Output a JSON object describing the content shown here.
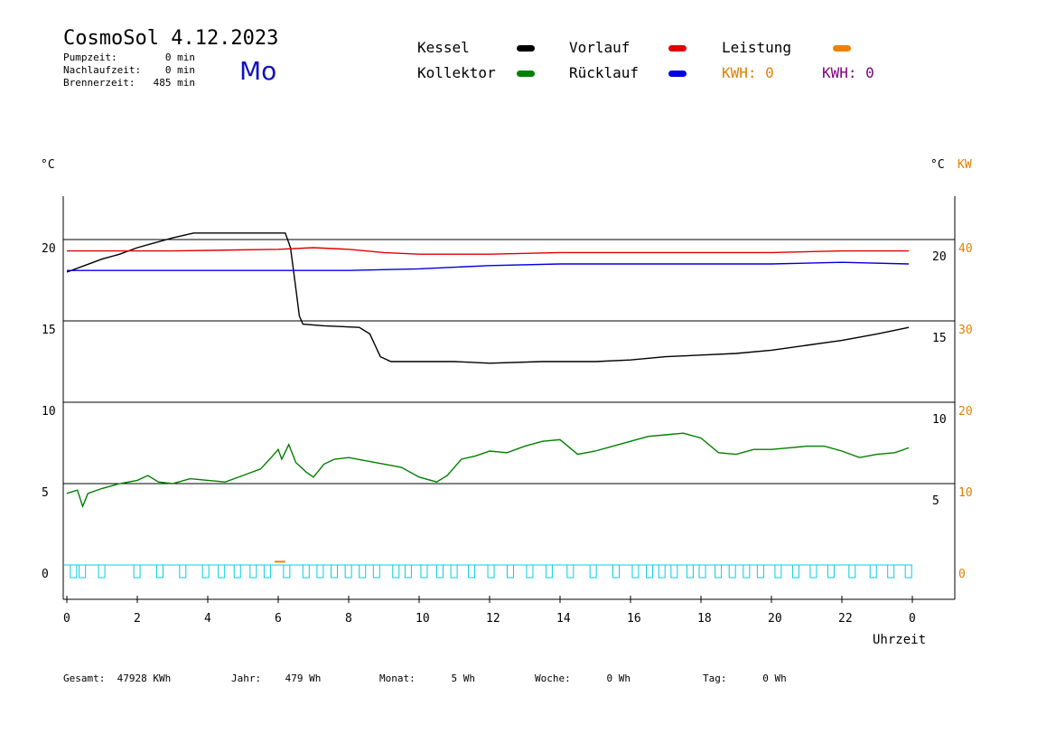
{
  "header": {
    "title": "CosmoSol 4.12.2023",
    "day": "Mo",
    "stats": [
      {
        "label": "Pumpzeit:",
        "value": "0 min"
      },
      {
        "label": "Nachlaufzeit:",
        "value": "0 min"
      },
      {
        "label": "Brennerzeit:",
        "value": "485 min"
      }
    ]
  },
  "legend": {
    "kessel": {
      "label": "Kessel",
      "color": "#000000"
    },
    "vorlauf": {
      "label": "Vorlauf",
      "color": "#e00000"
    },
    "leistung": {
      "label": "Leistung",
      "color": "#f08000"
    },
    "kollektor": {
      "label": "Kollektor",
      "color": "#008000"
    },
    "ruecklauf": {
      "label": "Rücklauf",
      "color": "#0000e0"
    },
    "kwh1": "KWH: 0",
    "kwh2": "KWH: 0",
    "kwh1_color": "#e08000",
    "kwh2_color": "#800080"
  },
  "axes": {
    "left_unit": "°C",
    "right_unit": "°C",
    "right_unit2": "KW",
    "xlabel": "Uhrzeit"
  },
  "footer": {
    "gesamt": "Gesamt:  47928 KWh",
    "jahr": "Jahr:    479 Wh",
    "monat": "Monat:      5 Wh",
    "woche": "Woche:      0 Wh",
    "tag": "Tag:      0 Wh"
  },
  "chart_data": {
    "type": "line",
    "xlabel": "Uhrzeit",
    "x_ticks": [
      "0",
      "2",
      "4",
      "6",
      "8",
      "10",
      "12",
      "14",
      "16",
      "18",
      "20",
      "22",
      "0"
    ],
    "xlim": [
      0,
      24
    ],
    "y_left": {
      "ticks": [
        0,
        5,
        10,
        15,
        20
      ],
      "range": [
        -1.7,
        22.8
      ]
    },
    "y_right_inner": {
      "ticks": [
        5,
        10,
        15,
        20
      ]
    },
    "y_right_kw": {
      "ticks": [
        0,
        10,
        20,
        30,
        40
      ],
      "color": "#e08000"
    },
    "grid": "horizontal",
    "series": [
      {
        "name": "Kessel",
        "color": "#000000",
        "points": [
          [
            0,
            18.0
          ],
          [
            0.5,
            18.4
          ],
          [
            1,
            18.8
          ],
          [
            1.5,
            19.1
          ],
          [
            2,
            19.5
          ],
          [
            2.5,
            19.8
          ],
          [
            3,
            20.1
          ],
          [
            3.6,
            20.4
          ],
          [
            6.2,
            20.4
          ],
          [
            6.35,
            19.5
          ],
          [
            6.5,
            17.0
          ],
          [
            6.6,
            15.3
          ],
          [
            6.7,
            14.8
          ],
          [
            7.3,
            14.7
          ],
          [
            8.3,
            14.6
          ],
          [
            8.6,
            14.2
          ],
          [
            8.9,
            12.8
          ],
          [
            9.2,
            12.5
          ],
          [
            11,
            12.5
          ],
          [
            12,
            12.4
          ],
          [
            13.5,
            12.5
          ],
          [
            15,
            12.5
          ],
          [
            16,
            12.6
          ],
          [
            17,
            12.8
          ],
          [
            18,
            12.9
          ],
          [
            19,
            13.0
          ],
          [
            20,
            13.2
          ],
          [
            21,
            13.5
          ],
          [
            22,
            13.8
          ],
          [
            23,
            14.2
          ],
          [
            23.9,
            14.6
          ]
        ]
      },
      {
        "name": "Vorlauf",
        "color": "#e00000",
        "points": [
          [
            0,
            19.3
          ],
          [
            3,
            19.3
          ],
          [
            6,
            19.4
          ],
          [
            7,
            19.5
          ],
          [
            8,
            19.4
          ],
          [
            9,
            19.2
          ],
          [
            10,
            19.1
          ],
          [
            12,
            19.1
          ],
          [
            14,
            19.2
          ],
          [
            16,
            19.2
          ],
          [
            18,
            19.2
          ],
          [
            20,
            19.2
          ],
          [
            22,
            19.3
          ],
          [
            23.9,
            19.3
          ]
        ]
      },
      {
        "name": "Rücklauf",
        "color": "#0000e0",
        "points": [
          [
            0,
            18.1
          ],
          [
            3,
            18.1
          ],
          [
            6,
            18.1
          ],
          [
            8,
            18.1
          ],
          [
            10,
            18.2
          ],
          [
            12,
            18.4
          ],
          [
            14,
            18.5
          ],
          [
            16,
            18.5
          ],
          [
            18,
            18.5
          ],
          [
            20,
            18.5
          ],
          [
            22,
            18.6
          ],
          [
            23.9,
            18.5
          ]
        ]
      },
      {
        "name": "Kollektor",
        "color": "#008000",
        "points": [
          [
            0,
            4.4
          ],
          [
            0.3,
            4.6
          ],
          [
            0.45,
            3.6
          ],
          [
            0.6,
            4.4
          ],
          [
            1,
            4.7
          ],
          [
            1.5,
            5.0
          ],
          [
            2,
            5.2
          ],
          [
            2.3,
            5.5
          ],
          [
            2.6,
            5.1
          ],
          [
            3,
            5.0
          ],
          [
            3.5,
            5.3
          ],
          [
            4,
            5.2
          ],
          [
            4.5,
            5.1
          ],
          [
            5,
            5.5
          ],
          [
            5.5,
            5.9
          ],
          [
            5.8,
            6.6
          ],
          [
            6.0,
            7.1
          ],
          [
            6.1,
            6.5
          ],
          [
            6.3,
            7.4
          ],
          [
            6.5,
            6.3
          ],
          [
            6.8,
            5.7
          ],
          [
            7.0,
            5.4
          ],
          [
            7.3,
            6.2
          ],
          [
            7.6,
            6.5
          ],
          [
            8,
            6.6
          ],
          [
            8.5,
            6.4
          ],
          [
            9,
            6.2
          ],
          [
            9.5,
            6.0
          ],
          [
            10,
            5.4
          ],
          [
            10.5,
            5.1
          ],
          [
            10.8,
            5.5
          ],
          [
            11.2,
            6.5
          ],
          [
            11.6,
            6.7
          ],
          [
            12,
            7.0
          ],
          [
            12.5,
            6.9
          ],
          [
            13,
            7.3
          ],
          [
            13.5,
            7.6
          ],
          [
            14,
            7.7
          ],
          [
            14.5,
            6.8
          ],
          [
            15,
            7.0
          ],
          [
            15.5,
            7.3
          ],
          [
            16,
            7.6
          ],
          [
            16.5,
            7.9
          ],
          [
            17,
            8.0
          ],
          [
            17.5,
            8.1
          ],
          [
            18,
            7.8
          ],
          [
            18.5,
            6.9
          ],
          [
            19,
            6.8
          ],
          [
            19.5,
            7.1
          ],
          [
            20,
            7.1
          ],
          [
            20.5,
            7.2
          ],
          [
            21,
            7.3
          ],
          [
            21.5,
            7.3
          ],
          [
            22,
            7.0
          ],
          [
            22.5,
            6.6
          ],
          [
            23,
            6.8
          ],
          [
            23.5,
            6.9
          ],
          [
            23.9,
            7.2
          ]
        ]
      },
      {
        "name": "Leistung",
        "color": "#f08000",
        "points": [
          [
            5.9,
            0.2
          ],
          [
            6.2,
            0.2
          ]
        ]
      }
    ]
  }
}
